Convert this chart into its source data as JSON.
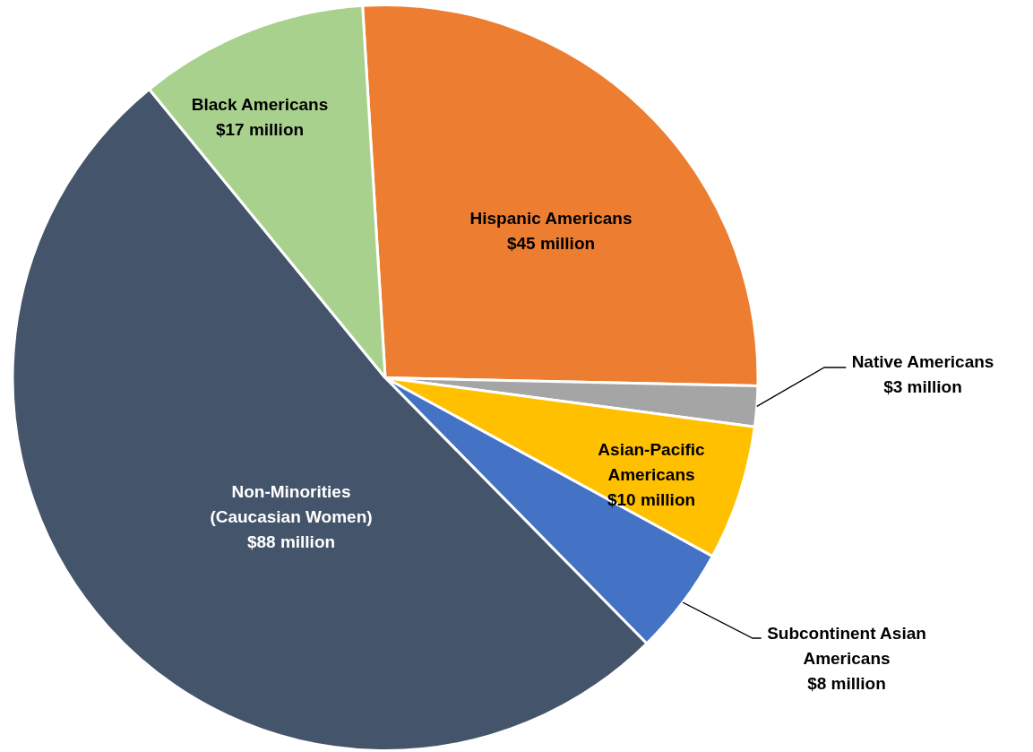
{
  "chart_data": {
    "type": "pie",
    "categories": [
      "Hispanic Americans",
      "Native Americans",
      "Asian-Pacific Americans",
      "Subcontinent Asian Americans",
      "Non-Minorities (Caucasian Women)",
      "Black Americans"
    ],
    "values": [
      45,
      3,
      10,
      8,
      88,
      17
    ],
    "value_labels": [
      "$45 million",
      "$3 million",
      "$10 million",
      "$8 million",
      "$88 million",
      "$17 million"
    ],
    "colors": [
      "#ed7d31",
      "#a5a5a5",
      "#ffc000",
      "#4472c4",
      "#44546a",
      "#a9d18e"
    ],
    "legend": false
  }
}
